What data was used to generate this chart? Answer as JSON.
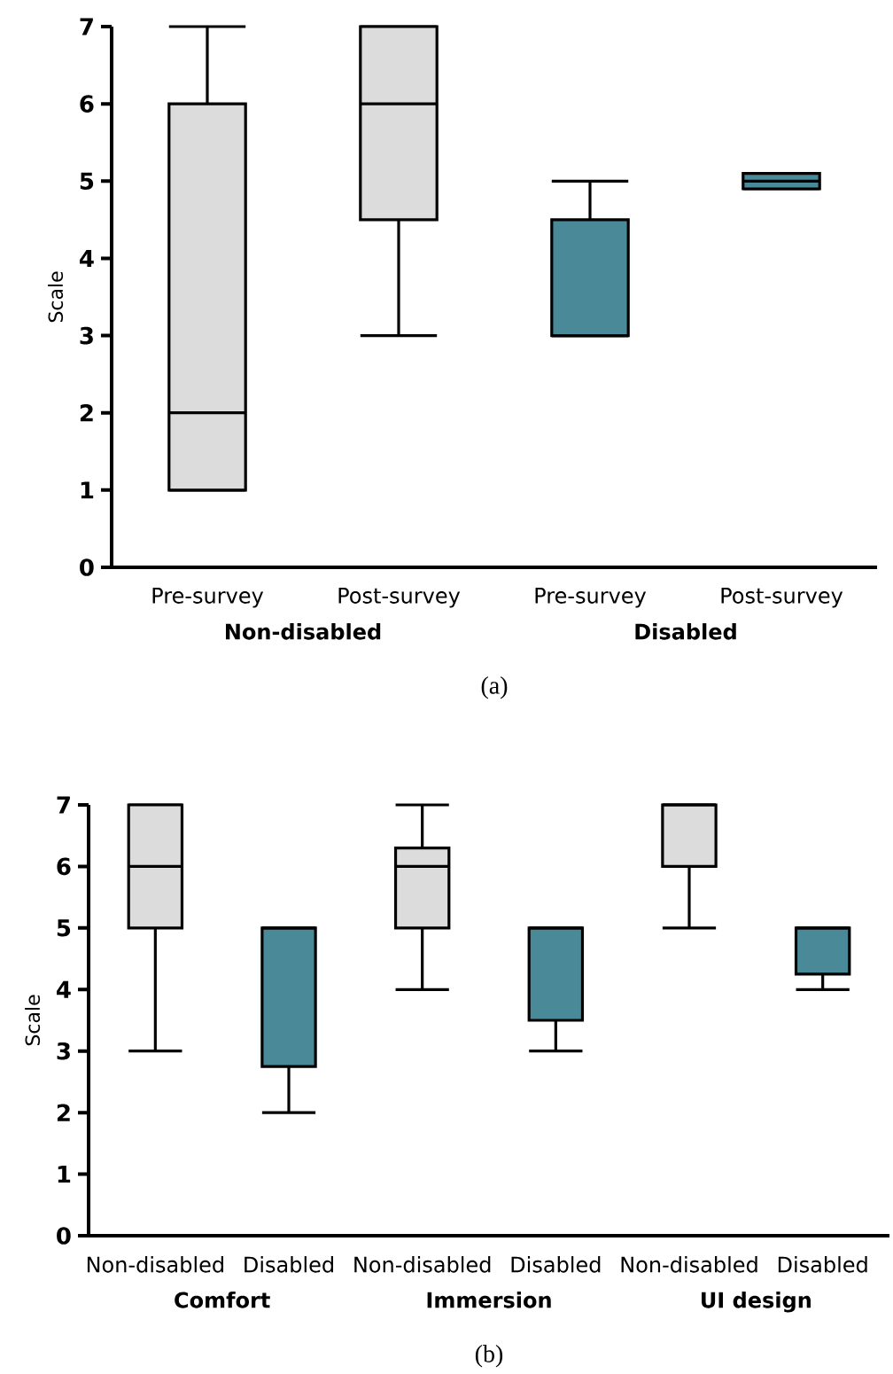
{
  "chart_data": [
    {
      "type": "box",
      "title": "(a)",
      "ylabel": "Scale",
      "categories": [
        "Pre-survey",
        "Post-survey",
        "Pre-survey",
        "Post-survey"
      ],
      "annotations": [
        "Non-disabled",
        "Disabled"
      ],
      "ylim": [
        0,
        7
      ],
      "yticks": [
        0,
        1,
        2,
        3,
        4,
        5,
        6,
        7
      ],
      "colors": [
        "#dcdcdc",
        "#dcdcdc",
        "#4a8a98",
        "#4a8a98"
      ],
      "boxes": [
        {
          "low": 1,
          "q1": 1,
          "median": 2,
          "q3": 6,
          "high": 7
        },
        {
          "low": 3,
          "q1": 4.5,
          "median": 6,
          "q3": 7,
          "high": 7
        },
        {
          "low": 3,
          "q1": 3,
          "median": 3,
          "q3": 4.5,
          "high": 5
        },
        {
          "low": 4.9,
          "q1": 4.9,
          "median": 5,
          "q3": 5.1,
          "high": 5.1
        }
      ]
    },
    {
      "type": "box",
      "title": "(b)",
      "ylabel": "Scale",
      "categories": [
        "Non-disabled",
        "Disabled",
        "Non-disabled",
        "Disabled",
        "Non-disabled",
        "Disabled"
      ],
      "annotations": [
        "Comfort",
        "Immersion",
        "UI design"
      ],
      "ylim": [
        0,
        7
      ],
      "yticks": [
        0,
        1,
        2,
        3,
        4,
        5,
        6,
        7
      ],
      "colors": [
        "#dcdcdc",
        "#4a8a98",
        "#dcdcdc",
        "#4a8a98",
        "#dcdcdc",
        "#4a8a98"
      ],
      "boxes": [
        {
          "low": 3,
          "q1": 5,
          "median": 6,
          "q3": 7,
          "high": 7
        },
        {
          "low": 2,
          "q1": 2.75,
          "median": 5,
          "q3": 5,
          "high": 5
        },
        {
          "low": 4,
          "q1": 5,
          "median": 6,
          "q3": 6.3,
          "high": 7
        },
        {
          "low": 3,
          "q1": 3.5,
          "median": 5,
          "q3": 5,
          "high": 5
        },
        {
          "low": 5,
          "q1": 6,
          "median": 7,
          "q3": 7,
          "high": 7
        },
        {
          "low": 4,
          "q1": 4.25,
          "median": 5,
          "q3": 5,
          "high": 5
        }
      ]
    }
  ]
}
